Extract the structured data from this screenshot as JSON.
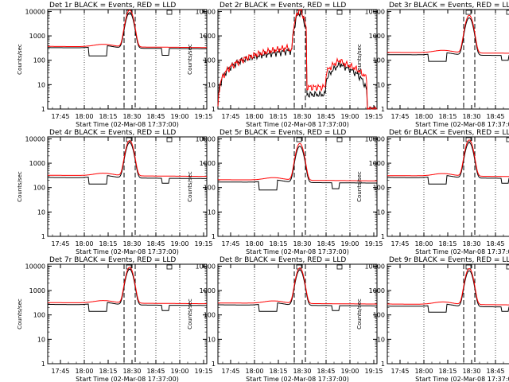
{
  "chart_data": {
    "type": "line",
    "y_scale": "log",
    "ylim": [
      1,
      12000
    ],
    "x_tick_labels": [
      "17:45",
      "18:00",
      "18:15",
      "18:30",
      "18:45",
      "19:00",
      "19:15"
    ],
    "y_tick_labels": [
      "1",
      "10",
      "100",
      "1000",
      "10000"
    ],
    "y_ticks": [
      1,
      10,
      100,
      1000,
      10000
    ],
    "ylabel": "Counts/sec",
    "xlabel": "Start Time (02-Mar-08 17:37:00)",
    "series_colors": {
      "events": "#000000",
      "lld": "#ff0000"
    },
    "grid": "dotted vertical lines at 18:00, 18:45, 19:00; dashed vertical lines at 18:25 and 18:32",
    "panels": [
      {
        "title": "Det 1r BLACK = Events, RED = LLD",
        "variant": "normal",
        "base_black": 330,
        "base_red": 370,
        "dip1": 150,
        "dip2": 160,
        "peak_black": 9000,
        "peak_red": 11500
      },
      {
        "title": "Det 2r BLACK = Events, RED = LLD",
        "variant": "noisy",
        "base_black": 2,
        "base_red": 3,
        "dip1": 1,
        "dip2": 1,
        "peak_black": 9000,
        "peak_red": 11000
      },
      {
        "title": "Det 3r BLACK = Events, RED = LLD",
        "variant": "normal",
        "base_black": 170,
        "base_red": 210,
        "dip1": 90,
        "dip2": 100,
        "peak_black": 5500,
        "peak_red": 7000
      },
      {
        "title": "Det 4r BLACK = Events, RED = LLD",
        "variant": "normal",
        "base_black": 260,
        "base_red": 320,
        "dip1": 140,
        "dip2": 150,
        "peak_black": 7000,
        "peak_red": 8500
      },
      {
        "title": "Det 5r BLACK = Events, RED = LLD",
        "variant": "normal",
        "base_black": 170,
        "base_red": 210,
        "dip1": 80,
        "dip2": 90,
        "peak_black": 5000,
        "peak_red": 6500
      },
      {
        "title": "Det 6r BLACK = Events, RED = LLD",
        "variant": "normal",
        "base_black": 260,
        "base_red": 310,
        "dip1": 140,
        "dip2": 150,
        "peak_black": 7000,
        "peak_red": 9000
      },
      {
        "title": "Det 7r BLACK = Events, RED = LLD",
        "variant": "normal",
        "base_black": 270,
        "base_red": 320,
        "dip1": 140,
        "dip2": 150,
        "peak_black": 7500,
        "peak_red": 9000
      },
      {
        "title": "Det 8r BLACK = Events, RED = LLD",
        "variant": "normal",
        "base_black": 260,
        "base_red": 310,
        "dip1": 140,
        "dip2": 150,
        "peak_black": 7000,
        "peak_red": 8500
      },
      {
        "title": "Det 9r BLACK = Events, RED = LLD",
        "variant": "normal",
        "base_black": 230,
        "base_red": 280,
        "dip1": 130,
        "dip2": 140,
        "peak_black": 6500,
        "peak_red": 8000
      }
    ]
  }
}
